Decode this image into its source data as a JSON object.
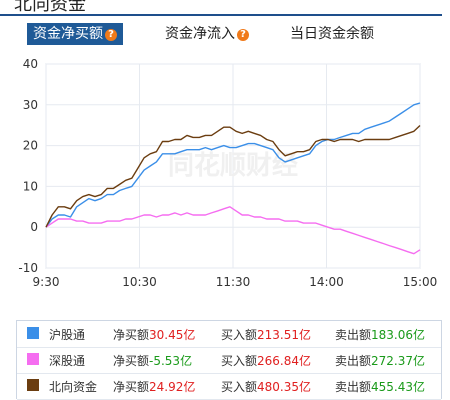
{
  "header": {
    "title": "北向资金",
    "title_accent": ""
  },
  "tabs": [
    {
      "label": "资金净买额",
      "has_help": true,
      "active": true
    },
    {
      "label": "资金净流入",
      "has_help": true,
      "active": false
    },
    {
      "label": "当日资金余额",
      "has_help": false,
      "active": false
    }
  ],
  "help_glyph": "?",
  "colors": {
    "hgt": "#3b8fe8",
    "sgt": "#f56df0",
    "north": "#6b3d10",
    "accent": "#1f5a97"
  },
  "chart_data": {
    "type": "line",
    "x_ticks": [
      "9:30",
      "10:30",
      "11:30",
      "14:00",
      "15:00"
    ],
    "ylim": [
      -10,
      40
    ],
    "y_ticks": [
      -10,
      0,
      10,
      20,
      30,
      40
    ],
    "grid": true,
    "watermark": "同花顺财经",
    "series": [
      {
        "name": "沪股通",
        "color": "#3b8fe8",
        "values": [
          0,
          2,
          3,
          3,
          2.5,
          5,
          6,
          7,
          6.5,
          7,
          8,
          8,
          9,
          9.5,
          10,
          12,
          14,
          15,
          16,
          18,
          18,
          18,
          18.5,
          19,
          19,
          19,
          19.5,
          19,
          19.5,
          20,
          19.5,
          19.5,
          20,
          20.5,
          20.5,
          20,
          19.5,
          19,
          17,
          16,
          16.5,
          17,
          17.5,
          18,
          20,
          21,
          21.5,
          21.5,
          22,
          22.5,
          23,
          23,
          24,
          24.5,
          25,
          25.5,
          26,
          27,
          28,
          29,
          30,
          30.45
        ]
      },
      {
        "name": "深股通",
        "color": "#f56df0",
        "values": [
          0,
          1,
          2,
          2,
          2,
          1.5,
          1.5,
          1,
          1,
          1,
          1.5,
          1.5,
          1.5,
          2,
          2,
          2.5,
          3,
          3,
          2.5,
          3,
          3,
          3.5,
          3,
          3.5,
          3,
          3,
          3,
          3.5,
          4,
          4.5,
          5,
          4,
          3,
          3,
          2.5,
          2.5,
          2,
          2,
          2,
          1.5,
          1.5,
          1.5,
          1,
          1,
          1,
          0.5,
          0,
          -0.5,
          -0.5,
          -1,
          -1.5,
          -2,
          -2.5,
          -3,
          -3.5,
          -4,
          -4.5,
          -5,
          -5.5,
          -6,
          -6.5,
          -5.53
        ]
      },
      {
        "name": "北向资金",
        "color": "#6b3d10",
        "values": [
          0,
          3,
          5,
          5,
          4.5,
          6.5,
          7.5,
          8,
          7.5,
          8,
          9.5,
          9.5,
          10.5,
          11.5,
          12,
          14.5,
          17,
          18,
          18.5,
          21,
          21,
          21.5,
          21.5,
          22.5,
          22,
          22,
          22.5,
          22.5,
          23.5,
          24.5,
          24.5,
          23.5,
          23,
          23.5,
          23,
          22.5,
          21.5,
          21,
          19,
          17.5,
          18,
          18.5,
          18.5,
          19,
          21,
          21.5,
          21.5,
          21,
          21.5,
          21.5,
          21.5,
          21,
          21.5,
          21.5,
          21.5,
          21.5,
          21.5,
          22,
          22.5,
          23,
          23.5,
          24.92
        ]
      }
    ]
  },
  "legend": [
    {
      "name": "沪股通",
      "net_label": "净买额",
      "net": "30.45亿",
      "buy_label": "买入额",
      "buy": "213.51亿",
      "sell_label": "卖出额",
      "sell": "183.06亿"
    },
    {
      "name": "深股通",
      "net_label": "净买额",
      "net": "-5.53亿",
      "buy_label": "买入额",
      "buy": "266.84亿",
      "sell_label": "卖出额",
      "sell": "272.37亿"
    },
    {
      "name": "北向资金",
      "net_label": "净买额",
      "net": "24.92亿",
      "buy_label": "买入额",
      "buy": "480.35亿",
      "sell_label": "卖出额",
      "sell": "455.43亿"
    }
  ]
}
